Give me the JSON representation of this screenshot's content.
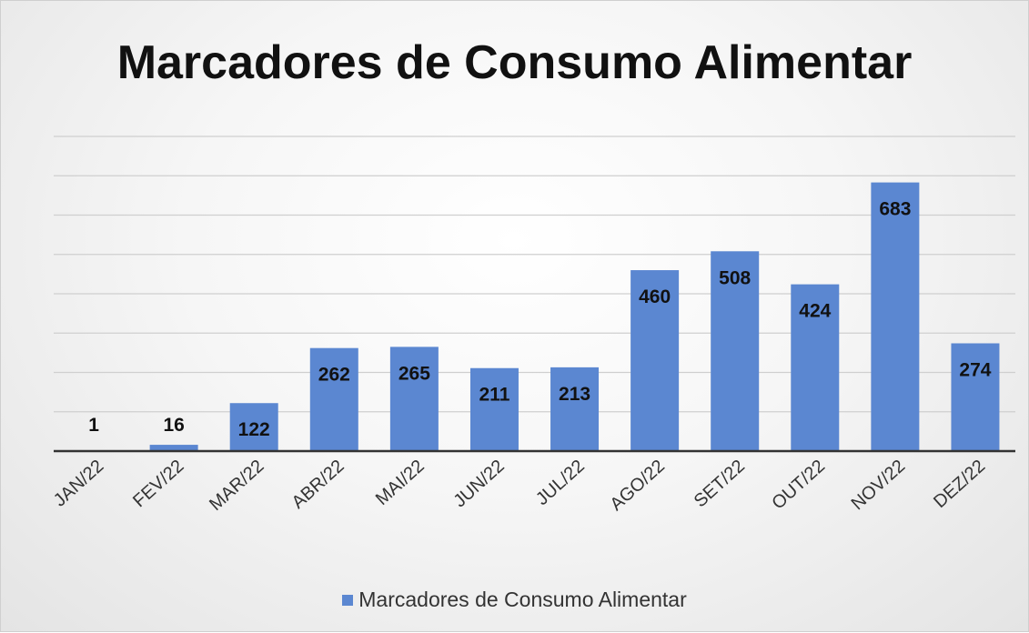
{
  "chart_data": {
    "type": "bar",
    "title": "Marcadores de Consumo Alimentar",
    "categories": [
      "JAN/22",
      "FEV/22",
      "MAR/22",
      "ABR/22",
      "MAI/22",
      "JUN/22",
      "JUL/22",
      "AGO/22",
      "SET/22",
      "OUT/22",
      "NOV/22",
      "DEZ/22"
    ],
    "series": [
      {
        "name": "Marcadores de Consumo Alimentar",
        "values": [
          1,
          16,
          122,
          262,
          265,
          211,
          213,
          460,
          508,
          424,
          683,
          274
        ],
        "color": "#5b87d1"
      }
    ],
    "ylim": [
      0,
      800
    ],
    "y_gridline_step": 100,
    "y_axis_labels_shown": false,
    "grid": true,
    "legend": "bottom",
    "data_labels": true
  }
}
